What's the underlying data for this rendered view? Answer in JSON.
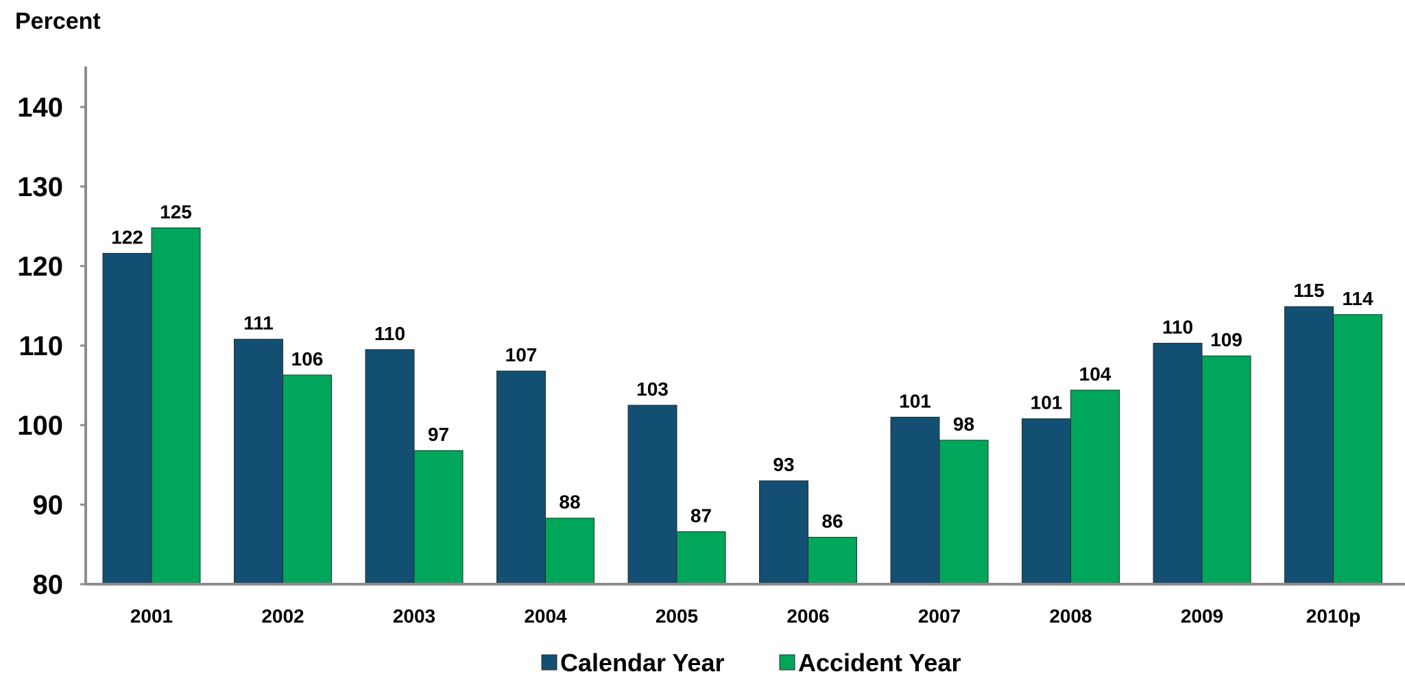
{
  "chart_data": {
    "type": "bar",
    "ylabel": "Percent",
    "xlabel": "",
    "ylim": [
      80,
      145
    ],
    "yticks": [
      80,
      90,
      100,
      110,
      120,
      130,
      140
    ],
    "categories": [
      "2001",
      "2002",
      "2003",
      "2004",
      "2005",
      "2006",
      "2007",
      "2008",
      "2009",
      "2010p"
    ],
    "series": [
      {
        "name": "Calendar Year",
        "color": "#124F73",
        "values": [
          121.6,
          110.8,
          109.5,
          106.8,
          102.5,
          93.0,
          101.0,
          100.8,
          110.3,
          114.9
        ],
        "labels": [
          "122",
          "111",
          "110",
          "107",
          "103",
          "93",
          "101",
          "101",
          "110",
          "115"
        ]
      },
      {
        "name": "Accident Year",
        "color": "#00A65A",
        "values": [
          124.8,
          106.3,
          96.8,
          88.3,
          86.6,
          85.9,
          98.1,
          104.4,
          108.7,
          113.9
        ],
        "labels": [
          "125",
          "106",
          "97",
          "88",
          "87",
          "86",
          "98",
          "104",
          "109",
          "114"
        ]
      }
    ],
    "grid": false,
    "legend": "bottom-center"
  }
}
